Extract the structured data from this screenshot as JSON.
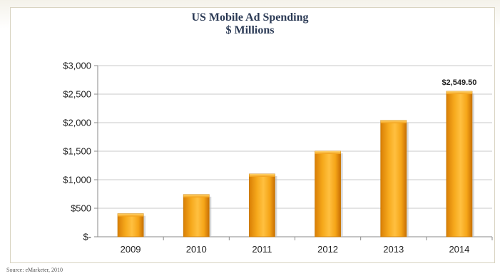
{
  "chart_data": {
    "type": "bar",
    "title": "US Mobile Ad Spending",
    "subtitle": "$ Millions",
    "categories": [
      "2009",
      "2010",
      "2011",
      "2012",
      "2013",
      "2014"
    ],
    "values": [
      405,
      740,
      1100,
      1500,
      2040,
      2549.5
    ],
    "ylim": [
      0,
      3000
    ],
    "yticks": [
      0,
      500,
      1000,
      1500,
      2000,
      2500,
      3000
    ],
    "ytick_labels": [
      "$-",
      "$500",
      "$1,000",
      "$1,500",
      "$2,000",
      "$2,500",
      "$3,000"
    ],
    "data_labels": [
      {
        "category": "2014",
        "text": "$2,549.50"
      }
    ],
    "grid": true,
    "bar_color": "#f5a417",
    "source_note": "Source: eMarketer, 2010"
  }
}
